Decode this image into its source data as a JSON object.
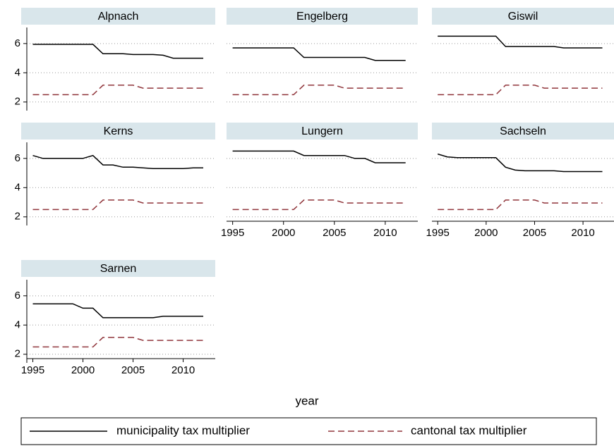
{
  "chart_data": {
    "type": "line",
    "xlabel": "year",
    "x": [
      1995,
      1996,
      1997,
      1998,
      1999,
      2000,
      2001,
      2002,
      2003,
      2004,
      2005,
      2006,
      2007,
      2008,
      2009,
      2010,
      2011,
      2012
    ],
    "xlim": [
      1994.4,
      2013.2
    ],
    "xticks": [
      1995,
      2000,
      2005,
      2010
    ],
    "ylim": [
      1.7,
      7.1
    ],
    "yticks": [
      2,
      4,
      6
    ],
    "grid": true,
    "legend": "bottom",
    "series": [
      {
        "name": "municipality tax multiplier",
        "color": "#000000",
        "dash": false
      },
      {
        "name": "cantonal tax multiplier",
        "color": "#90353b",
        "dash": true
      }
    ],
    "panels": [
      {
        "title": "Alpnach",
        "series": [
          {
            "values": [
              5.95,
              5.95,
              5.95,
              5.95,
              5.95,
              5.95,
              5.95,
              5.3,
              5.3,
              5.3,
              5.25,
              5.25,
              5.25,
              5.2,
              5.0,
              5.0,
              5.0,
              5.0
            ]
          },
          {
            "values": [
              2.5,
              2.5,
              2.5,
              2.5,
              2.5,
              2.5,
              2.5,
              3.15,
              3.15,
              3.15,
              3.15,
              2.95,
              2.95,
              2.95,
              2.95,
              2.95,
              2.95,
              2.95
            ]
          }
        ]
      },
      {
        "title": "Engelberg",
        "series": [
          {
            "values": [
              5.7,
              5.7,
              5.7,
              5.7,
              5.7,
              5.7,
              5.7,
              5.05,
              5.05,
              5.05,
              5.05,
              5.05,
              5.05,
              5.05,
              4.85,
              4.85,
              4.85,
              4.85
            ]
          },
          {
            "values": [
              2.5,
              2.5,
              2.5,
              2.5,
              2.5,
              2.5,
              2.5,
              3.15,
              3.15,
              3.15,
              3.15,
              2.95,
              2.95,
              2.95,
              2.95,
              2.95,
              2.95,
              2.95
            ]
          }
        ]
      },
      {
        "title": "Giswil",
        "series": [
          {
            "values": [
              6.5,
              6.5,
              6.5,
              6.5,
              6.5,
              6.5,
              6.5,
              5.8,
              5.8,
              5.8,
              5.8,
              5.8,
              5.8,
              5.7,
              5.7,
              5.7,
              5.7,
              5.7
            ]
          },
          {
            "values": [
              2.5,
              2.5,
              2.5,
              2.5,
              2.5,
              2.5,
              2.5,
              3.15,
              3.15,
              3.15,
              3.15,
              2.95,
              2.95,
              2.95,
              2.95,
              2.95,
              2.95,
              2.95
            ]
          }
        ]
      },
      {
        "title": "Kerns",
        "series": [
          {
            "values": [
              6.2,
              6.0,
              6.0,
              6.0,
              6.0,
              6.0,
              6.2,
              5.55,
              5.55,
              5.4,
              5.4,
              5.35,
              5.3,
              5.3,
              5.3,
              5.3,
              5.35,
              5.35
            ]
          },
          {
            "values": [
              2.5,
              2.5,
              2.5,
              2.5,
              2.5,
              2.5,
              2.5,
              3.15,
              3.15,
              3.15,
              3.15,
              2.95,
              2.95,
              2.95,
              2.95,
              2.95,
              2.95,
              2.95
            ]
          }
        ]
      },
      {
        "title": "Lungern",
        "series": [
          {
            "values": [
              6.5,
              6.5,
              6.5,
              6.5,
              6.5,
              6.5,
              6.5,
              6.2,
              6.2,
              6.2,
              6.2,
              6.2,
              6.0,
              6.0,
              5.7,
              5.7,
              5.7,
              5.7
            ]
          },
          {
            "values": [
              2.5,
              2.5,
              2.5,
              2.5,
              2.5,
              2.5,
              2.5,
              3.15,
              3.15,
              3.15,
              3.15,
              2.95,
              2.95,
              2.95,
              2.95,
              2.95,
              2.95,
              2.95
            ]
          }
        ]
      },
      {
        "title": "Sachseln",
        "series": [
          {
            "values": [
              6.3,
              6.1,
              6.05,
              6.05,
              6.05,
              6.05,
              6.05,
              5.4,
              5.2,
              5.15,
              5.15,
              5.15,
              5.15,
              5.1,
              5.1,
              5.1,
              5.1,
              5.1
            ]
          },
          {
            "values": [
              2.5,
              2.5,
              2.5,
              2.5,
              2.5,
              2.5,
              2.5,
              3.15,
              3.15,
              3.15,
              3.15,
              2.95,
              2.95,
              2.95,
              2.95,
              2.95,
              2.95,
              2.95
            ]
          }
        ]
      },
      {
        "title": "Sarnen",
        "series": [
          {
            "values": [
              5.45,
              5.45,
              5.45,
              5.45,
              5.45,
              5.15,
              5.15,
              4.5,
              4.5,
              4.5,
              4.5,
              4.5,
              4.5,
              4.6,
              4.6,
              4.6,
              4.6,
              4.6
            ]
          },
          {
            "values": [
              2.5,
              2.5,
              2.5,
              2.5,
              2.5,
              2.5,
              2.5,
              3.15,
              3.15,
              3.15,
              3.15,
              2.95,
              2.95,
              2.95,
              2.95,
              2.95,
              2.95,
              2.95
            ]
          }
        ]
      }
    ]
  }
}
